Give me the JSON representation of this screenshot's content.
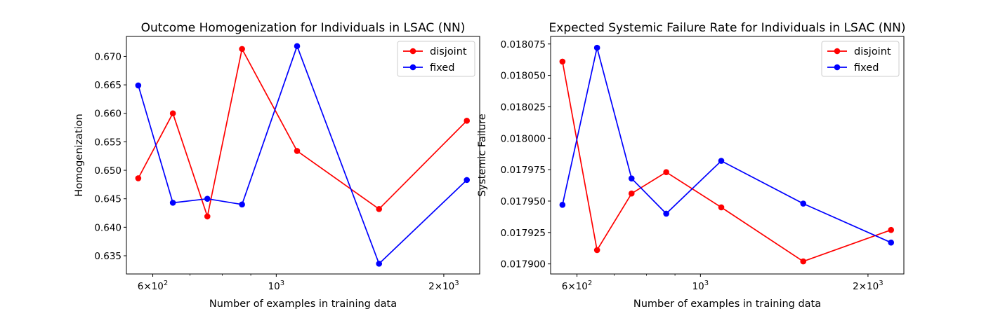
{
  "chart_data": [
    {
      "type": "line",
      "title": "Outcome Homogenization for Individuals in LSAC (NN)",
      "xlabel": "Number of examples in training data",
      "ylabel": "Homogenization",
      "xscale": "log",
      "xlim": [
        538,
        2320
      ],
      "ylim": [
        0.6318,
        0.6735
      ],
      "xticks": [
        {
          "value": 600,
          "base": "6×10",
          "exp": "2"
        },
        {
          "value": 1000,
          "base": "10",
          "exp": "3"
        },
        {
          "value": 2000,
          "base": "2×10",
          "exp": "3"
        }
      ],
      "minor_xticks": [
        700,
        800,
        900
      ],
      "yticks": [
        {
          "value": 0.635,
          "label": "0.635"
        },
        {
          "value": 0.64,
          "label": "0.640"
        },
        {
          "value": 0.645,
          "label": "0.645"
        },
        {
          "value": 0.65,
          "label": "0.650"
        },
        {
          "value": 0.655,
          "label": "0.655"
        },
        {
          "value": 0.66,
          "label": "0.660"
        },
        {
          "value": 0.665,
          "label": "0.665"
        },
        {
          "value": 0.67,
          "label": "0.670"
        }
      ],
      "x": [
        565,
        652,
        752,
        868,
        1090,
        1530,
        2200
      ],
      "series": [
        {
          "name": "disjoint",
          "color": "#ff0000",
          "values": [
            0.6486,
            0.66,
            0.6419,
            0.6713,
            0.6534,
            0.6432,
            0.6587
          ]
        },
        {
          "name": "fixed",
          "color": "#0000ff",
          "values": [
            0.6649,
            0.6443,
            0.645,
            0.644,
            0.6718,
            0.6336,
            0.6483
          ]
        }
      ],
      "legend": "top-right",
      "grid": false
    },
    {
      "type": "line",
      "title": "Expected Systemic Failure Rate for Individuals in LSAC (NN)",
      "xlabel": "Number of examples in training data",
      "ylabel": "Systemic Failure",
      "xscale": "log",
      "xlim": [
        538,
        2320
      ],
      "ylim": [
        0.017892,
        0.018081
      ],
      "xticks": [
        {
          "value": 600,
          "base": "6×10",
          "exp": "2"
        },
        {
          "value": 1000,
          "base": "10",
          "exp": "3"
        },
        {
          "value": 2000,
          "base": "2×10",
          "exp": "3"
        }
      ],
      "minor_xticks": [
        700,
        800,
        900
      ],
      "yticks": [
        {
          "value": 0.0179,
          "label": "0.017900"
        },
        {
          "value": 0.017925,
          "label": "0.017925"
        },
        {
          "value": 0.01795,
          "label": "0.017950"
        },
        {
          "value": 0.017975,
          "label": "0.017975"
        },
        {
          "value": 0.018,
          "label": "0.018000"
        },
        {
          "value": 0.018025,
          "label": "0.018025"
        },
        {
          "value": 0.01805,
          "label": "0.018050"
        },
        {
          "value": 0.018075,
          "label": "0.018075"
        }
      ],
      "x": [
        565,
        652,
        752,
        868,
        1090,
        1530,
        2200
      ],
      "series": [
        {
          "name": "disjoint",
          "color": "#ff0000",
          "values": [
            0.018061,
            0.017911,
            0.017956,
            0.017973,
            0.017945,
            0.017902,
            0.017927
          ]
        },
        {
          "name": "fixed",
          "color": "#0000ff",
          "values": [
            0.017947,
            0.018072,
            0.017968,
            0.01794,
            0.017982,
            0.017948,
            0.017917
          ]
        }
      ],
      "legend": "top-right",
      "grid": false
    }
  ]
}
